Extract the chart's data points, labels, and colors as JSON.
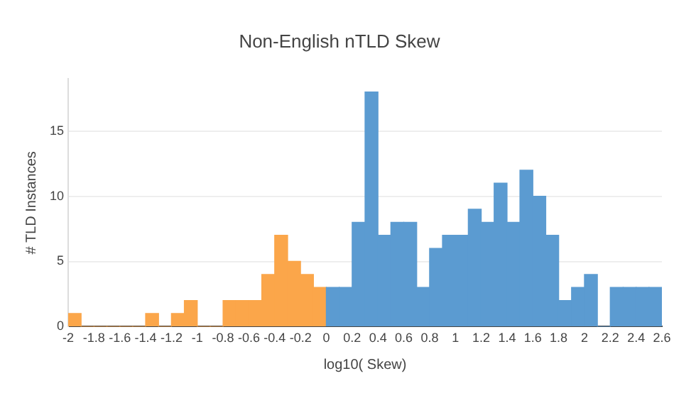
{
  "chart_data": {
    "type": "histogram",
    "title": "Non-English nTLD Skew",
    "xlabel": "log10( Skew)",
    "ylabel": "# TLD Instances",
    "bins": [
      -2,
      -1.9,
      -1.8,
      -1.7,
      -1.6,
      -1.5,
      -1.4,
      -1.3,
      -1.2,
      -1.1,
      -1,
      -0.9,
      -0.8,
      -0.7,
      -0.6,
      -0.5,
      -0.4,
      -0.3,
      -0.2,
      -0.1,
      0,
      0.1,
      0.2,
      0.3,
      0.4,
      0.5,
      0.6,
      0.7,
      0.8,
      0.9,
      1,
      1.1,
      1.2,
      1.3,
      1.4,
      1.5,
      1.6,
      1.7,
      1.8,
      1.9,
      2,
      2.1,
      2.2,
      2.3,
      2.4,
      2.5,
      2.6
    ],
    "values": [
      1,
      0,
      0,
      0,
      0,
      0,
      1,
      0,
      1,
      2,
      0,
      0,
      2,
      2,
      2,
      4,
      7,
      5,
      4,
      3,
      3,
      3,
      8,
      18,
      7,
      8,
      8,
      3,
      6,
      7,
      7,
      9,
      8,
      11,
      8,
      12,
      10,
      7,
      2,
      3,
      4,
      0,
      3,
      3,
      3,
      3
    ],
    "colors": [
      "#fba64a",
      "#fba64a",
      "#fba64a",
      "#fba64a",
      "#fba64a",
      "#fba64a",
      "#fba64a",
      "#fba64a",
      "#fba64a",
      "#fba64a",
      "#fba64a",
      "#fba64a",
      "#fba64a",
      "#fba64a",
      "#fba64a",
      "#fba64a",
      "#fba64a",
      "#fba64a",
      "#fba64a",
      "#fba64a",
      "#5b9bd1",
      "#5b9bd1",
      "#5b9bd1",
      "#5b9bd1",
      "#5b9bd1",
      "#5b9bd1",
      "#5b9bd1",
      "#5b9bd1",
      "#5b9bd1",
      "#5b9bd1",
      "#5b9bd1",
      "#5b9bd1",
      "#5b9bd1",
      "#5b9bd1",
      "#5b9bd1",
      "#5b9bd1",
      "#5b9bd1",
      "#5b9bd1",
      "#5b9bd1",
      "#5b9bd1",
      "#5b9bd1",
      "#5b9bd1",
      "#5b9bd1",
      "#5b9bd1",
      "#5b9bd1",
      "#5b9bd1"
    ],
    "xlim": [
      -2,
      2.6
    ],
    "xticks": [
      -2,
      -1.8,
      -1.6,
      -1.4,
      -1.2,
      -1,
      -0.8,
      -0.6,
      -0.4,
      -0.2,
      0,
      0.2,
      0.4,
      0.6,
      0.8,
      1,
      1.2,
      1.4,
      1.6,
      1.8,
      2,
      2.2,
      2.4,
      2.6
    ],
    "ylim": [
      0,
      19
    ],
    "yticks": [
      0,
      5,
      10,
      15
    ],
    "grid": "y",
    "legend": false
  }
}
